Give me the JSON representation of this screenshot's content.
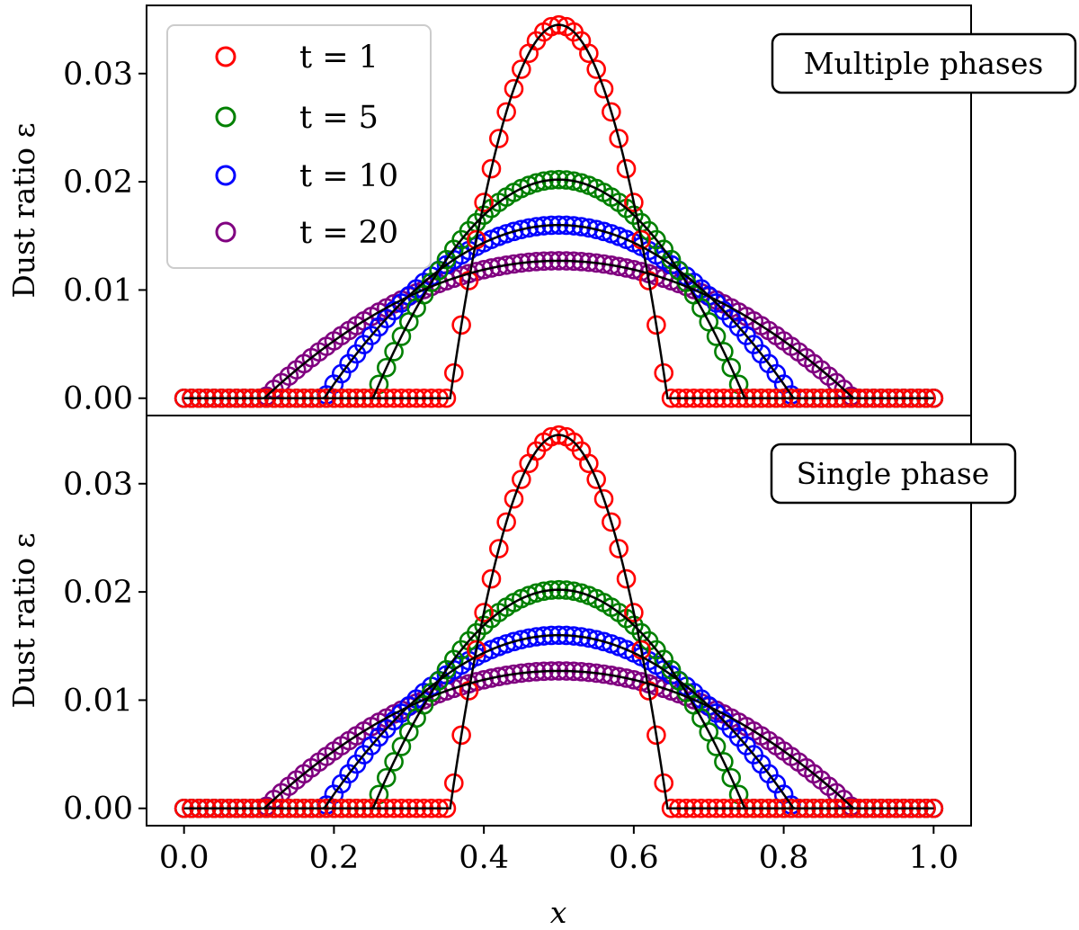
{
  "figure": {
    "xlabel": "x"
  },
  "legend": {
    "entries": [
      "t = 1",
      "t = 5",
      "t = 10",
      "t = 20"
    ]
  },
  "chart_data": [
    {
      "type": "scatter",
      "panel": "top",
      "annotation": "Multiple phases",
      "xlabel": "",
      "ylabel": "Dust ratio ε",
      "xlim": [
        -0.05,
        1.05
      ],
      "ylim": [
        -0.0016,
        0.0363
      ],
      "xticks": [],
      "yticks": [
        0.0,
        0.01,
        0.02,
        0.03
      ],
      "ytick_labels": [
        "0.00",
        "0.01",
        "0.02",
        "0.03"
      ],
      "legend_position": "top-left",
      "series": [
        {
          "name": "t = 1",
          "color": "#ff0000",
          "marker": "open-circle",
          "peak": 0.0345,
          "support": [
            0.355,
            0.645
          ]
        },
        {
          "name": "t = 5",
          "color": "#008000",
          "marker": "open-circle",
          "peak": 0.0202,
          "support": [
            0.252,
            0.748
          ]
        },
        {
          "name": "t = 10",
          "color": "#0000ff",
          "marker": "open-circle",
          "peak": 0.016,
          "support": [
            0.187,
            0.813
          ]
        },
        {
          "name": "t = 20",
          "color": "#800080",
          "marker": "open-circle",
          "peak": 0.0127,
          "support": [
            0.107,
            0.893
          ]
        }
      ],
      "reference_curves": "black solid analytic solution for each time",
      "points_per_series": 101
    },
    {
      "type": "scatter",
      "panel": "bottom",
      "annotation": "Single phase",
      "xlabel": "x",
      "ylabel": "Dust ratio ε",
      "xlim": [
        -0.05,
        1.05
      ],
      "ylim": [
        -0.0016,
        0.0363
      ],
      "xticks": [
        0.0,
        0.2,
        0.4,
        0.6,
        0.8,
        1.0
      ],
      "xtick_labels": [
        "0.0",
        "0.2",
        "0.4",
        "0.6",
        "0.8",
        "1.0"
      ],
      "yticks": [
        0.0,
        0.01,
        0.02,
        0.03
      ],
      "ytick_labels": [
        "0.00",
        "0.01",
        "0.02",
        "0.03"
      ],
      "series": [
        {
          "name": "t = 1",
          "color": "#ff0000",
          "marker": "open-circle",
          "peak": 0.0345,
          "support": [
            0.355,
            0.645
          ]
        },
        {
          "name": "t = 5",
          "color": "#008000",
          "marker": "open-circle",
          "peak": 0.0202,
          "support": [
            0.252,
            0.748
          ]
        },
        {
          "name": "t = 10",
          "color": "#0000ff",
          "marker": "open-circle",
          "peak": 0.016,
          "support": [
            0.187,
            0.813
          ]
        },
        {
          "name": "t = 20",
          "color": "#800080",
          "marker": "open-circle",
          "peak": 0.0127,
          "support": [
            0.107,
            0.893
          ]
        }
      ],
      "reference_curves": "black solid analytic solution for each time",
      "points_per_series": 101
    }
  ]
}
